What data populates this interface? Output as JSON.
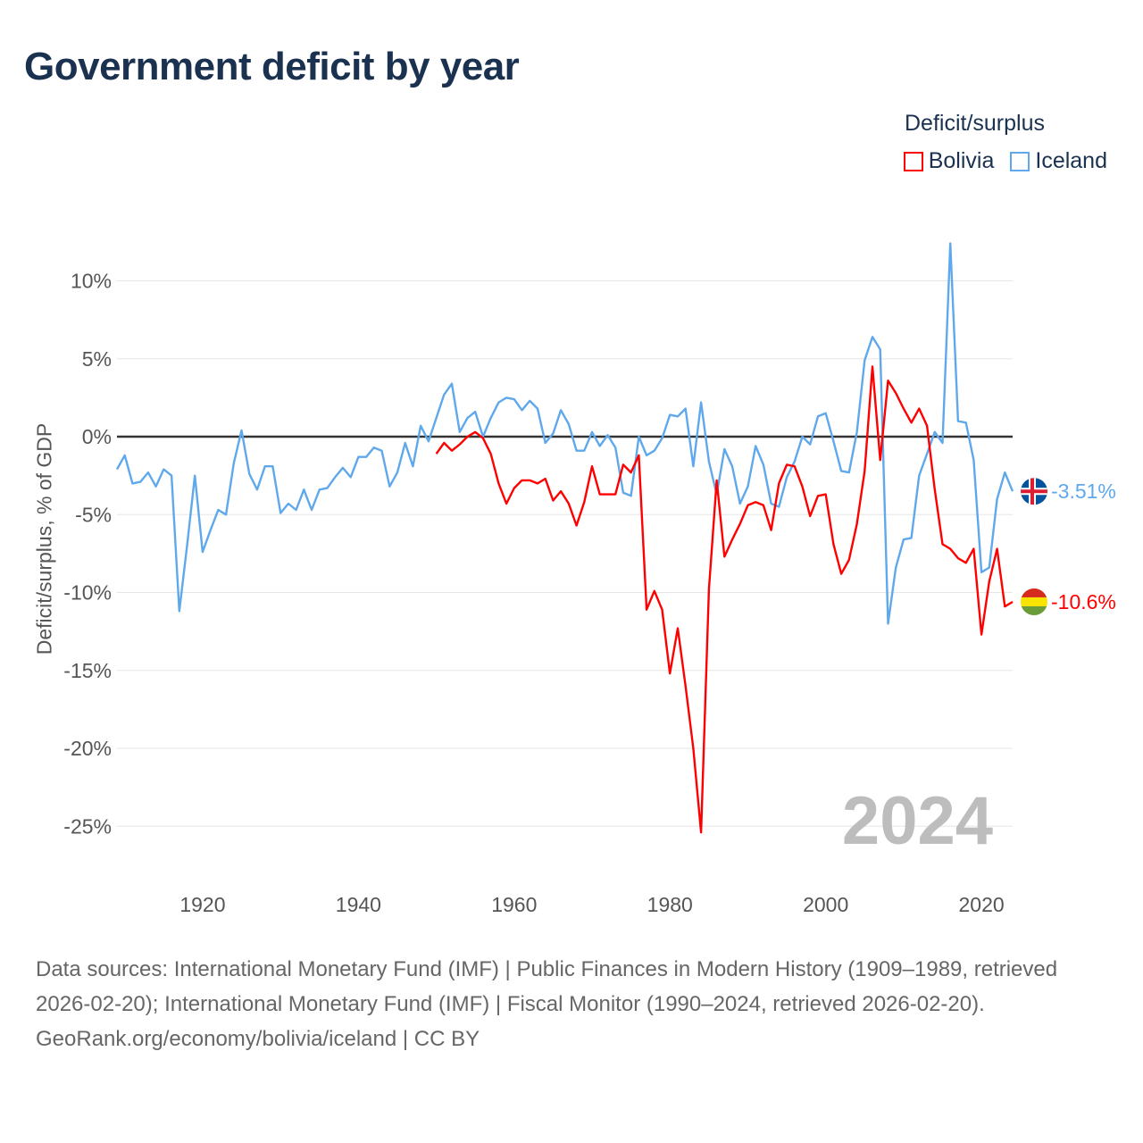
{
  "title": "Government deficit by year",
  "legend_title": "Deficit/surplus",
  "footer": {
    "sources": "Data sources: International Monetary Fund (IMF) | Public Finances in Modern History (1909–1989, retrieved 2026-02-20); International Monetary Fund (IMF) | Fiscal Monitor (1990–2024, retrieved 2026-02-20).",
    "credit": "GeoRank.org/economy/bolivia/iceland | CC BY"
  },
  "chart_data": {
    "type": "line",
    "title": "Government deficit by year",
    "ylabel": "Deficit/surplus, % of GDP",
    "xlabel": "",
    "xlim": [
      1909,
      2024
    ],
    "ylim": [
      -27,
      13
    ],
    "year_watermark": "2024",
    "x_ticks": [
      1920,
      1940,
      1960,
      1980,
      2000,
      2020
    ],
    "y_ticks": [
      10,
      5,
      0,
      -5,
      -10,
      -15,
      -20,
      -25
    ],
    "y_tick_labels": [
      "10%",
      "5%",
      "0%",
      "-5%",
      "-10%",
      "-15%",
      "-20%",
      "-25%"
    ],
    "grid": true,
    "legend_position": "top-right",
    "series": [
      {
        "name": "Bolivia",
        "color": "#ff0000",
        "end_label": "-10.6%",
        "flag": "bolivia-flag",
        "start_year": 1950,
        "values": [
          -1.1,
          -0.4,
          -0.9,
          -0.5,
          0.0,
          0.3,
          -0.1,
          -1.1,
          -3.0,
          -4.3,
          -3.3,
          -2.8,
          -2.8,
          -3.0,
          -2.7,
          -4.1,
          -3.5,
          -4.3,
          -5.7,
          -4.2,
          -1.9,
          -3.7,
          -3.7,
          -3.7,
          -1.8,
          -2.3,
          -1.2,
          -11.1,
          -9.9,
          -11.1,
          -15.2,
          -12.3,
          -16.0,
          -20.0,
          -25.4,
          -9.8,
          -2.8,
          -7.7,
          -6.6,
          -5.6,
          -4.4,
          -4.2,
          -4.4,
          -6.0,
          -3.0,
          -1.8,
          -1.9,
          -3.2,
          -5.1,
          -3.8,
          -3.7,
          -6.9,
          -8.8,
          -7.9,
          -5.6,
          -2.2,
          4.5,
          -1.5,
          3.6,
          2.8,
          1.8,
          0.9,
          1.8,
          0.7,
          -3.4,
          -6.9,
          -7.2,
          -7.8,
          -8.1,
          -7.2,
          -12.7,
          -9.3,
          -7.2,
          -10.9,
          -10.6
        ]
      },
      {
        "name": "Iceland",
        "color": "#5fa8ec",
        "end_label": "-3.51%",
        "flag": "iceland-flag",
        "start_year": 1909,
        "values": [
          -2.1,
          -1.2,
          -3.0,
          -2.9,
          -2.3,
          -3.2,
          -2.1,
          -2.5,
          -11.2,
          -7.0,
          -2.5,
          -7.4,
          -6.0,
          -4.7,
          -5.0,
          -1.7,
          0.4,
          -2.4,
          -3.4,
          -1.9,
          -1.9,
          -4.9,
          -4.3,
          -4.7,
          -3.4,
          -4.7,
          -3.4,
          -3.3,
          -2.6,
          -2.0,
          -2.6,
          -1.3,
          -1.3,
          -0.7,
          -0.9,
          -3.2,
          -2.3,
          -0.4,
          -1.9,
          0.7,
          -0.3,
          1.2,
          2.7,
          3.4,
          0.3,
          1.2,
          1.6,
          0.0,
          1.2,
          2.2,
          2.5,
          2.4,
          1.7,
          2.3,
          1.8,
          -0.4,
          0.2,
          1.7,
          0.8,
          -0.9,
          -0.9,
          0.3,
          -0.6,
          0.1,
          -0.7,
          -3.6,
          -3.8,
          0.0,
          -1.2,
          -0.9,
          -0.1,
          1.4,
          1.3,
          1.8,
          -1.9,
          2.2,
          -1.6,
          -3.7,
          -0.8,
          -1.9,
          -4.3,
          -3.2,
          -0.6,
          -1.8,
          -4.3,
          -4.5,
          -2.6,
          -1.6,
          0.0,
          -0.5,
          1.3,
          1.5,
          -0.3,
          -2.2,
          -2.3,
          0.3,
          4.9,
          6.4,
          5.6,
          -12.0,
          -8.4,
          -6.6,
          -6.5,
          -2.5,
          -1.1,
          0.3,
          -0.4,
          12.4,
          1.0,
          0.9,
          -1.5,
          -8.7,
          -8.4,
          -4.0,
          -2.3,
          -3.51
        ]
      }
    ]
  }
}
